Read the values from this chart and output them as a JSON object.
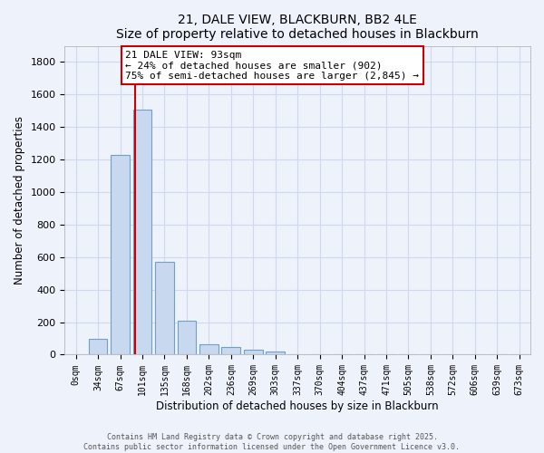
{
  "title": "21, DALE VIEW, BLACKBURN, BB2 4LE",
  "subtitle": "Size of property relative to detached houses in Blackburn",
  "xlabel": "Distribution of detached houses by size in Blackburn",
  "ylabel": "Number of detached properties",
  "bar_color": "#c8d8ee",
  "bar_edge_color": "#6fa0cc",
  "background_color": "#eef2fb",
  "grid_color": "#d0d8ee",
  "categories": [
    "0sqm",
    "34sqm",
    "67sqm",
    "101sqm",
    "135sqm",
    "168sqm",
    "202sqm",
    "236sqm",
    "269sqm",
    "303sqm",
    "337sqm",
    "370sqm",
    "404sqm",
    "437sqm",
    "471sqm",
    "505sqm",
    "538sqm",
    "572sqm",
    "606sqm",
    "639sqm",
    "673sqm"
  ],
  "values": [
    0,
    95,
    1230,
    1510,
    570,
    210,
    65,
    45,
    30,
    20,
    0,
    0,
    0,
    0,
    0,
    0,
    0,
    0,
    0,
    0,
    0
  ],
  "ylim": [
    0,
    1900
  ],
  "yticks": [
    0,
    200,
    400,
    600,
    800,
    1000,
    1200,
    1400,
    1600,
    1800
  ],
  "property_line_x": 2.67,
  "property_line_color": "#cc0000",
  "annotation_text": "21 DALE VIEW: 93sqm\n← 24% of detached houses are smaller (902)\n75% of semi-detached houses are larger (2,845) →",
  "footer_line1": "Contains HM Land Registry data © Crown copyright and database right 2025.",
  "footer_line2": "Contains public sector information licensed under the Open Government Licence v3.0."
}
